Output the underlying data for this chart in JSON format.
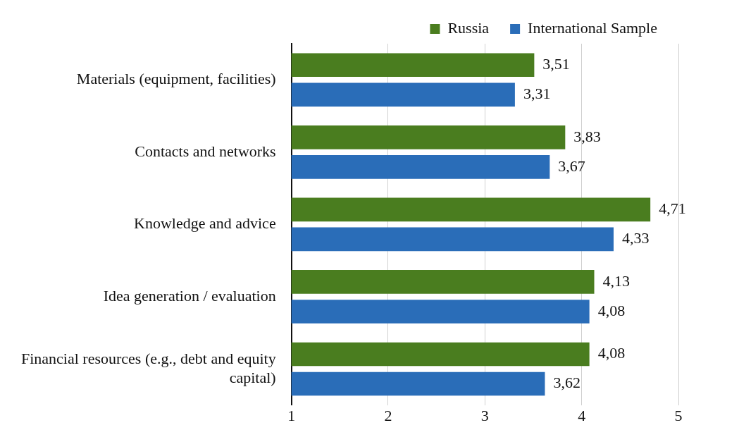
{
  "chart_data": {
    "type": "bar",
    "orientation": "horizontal",
    "categories": [
      "Materials (equipment, facilities)",
      "Contacts and networks",
      "Knowledge and advice",
      "Idea generation / evaluation",
      "Financial resources (e.g., debt and equity capital)"
    ],
    "series": [
      {
        "name": "Russia",
        "color": "#4a7d1f",
        "values": [
          3.51,
          3.83,
          4.71,
          4.13,
          4.08
        ],
        "value_labels": [
          "3,51",
          "3,83",
          "4,71",
          "4,13",
          "4,08"
        ]
      },
      {
        "name": "International Sample",
        "color": "#2a6db8",
        "values": [
          3.31,
          3.67,
          4.33,
          4.08,
          3.62
        ],
        "value_labels": [
          "3,31",
          "3,67",
          "4,33",
          "4,08",
          "3,62"
        ]
      }
    ],
    "xlim": [
      1,
      5
    ],
    "xticks": [
      1,
      2,
      3,
      4,
      5
    ],
    "grid": "x",
    "legend": "top right"
  }
}
